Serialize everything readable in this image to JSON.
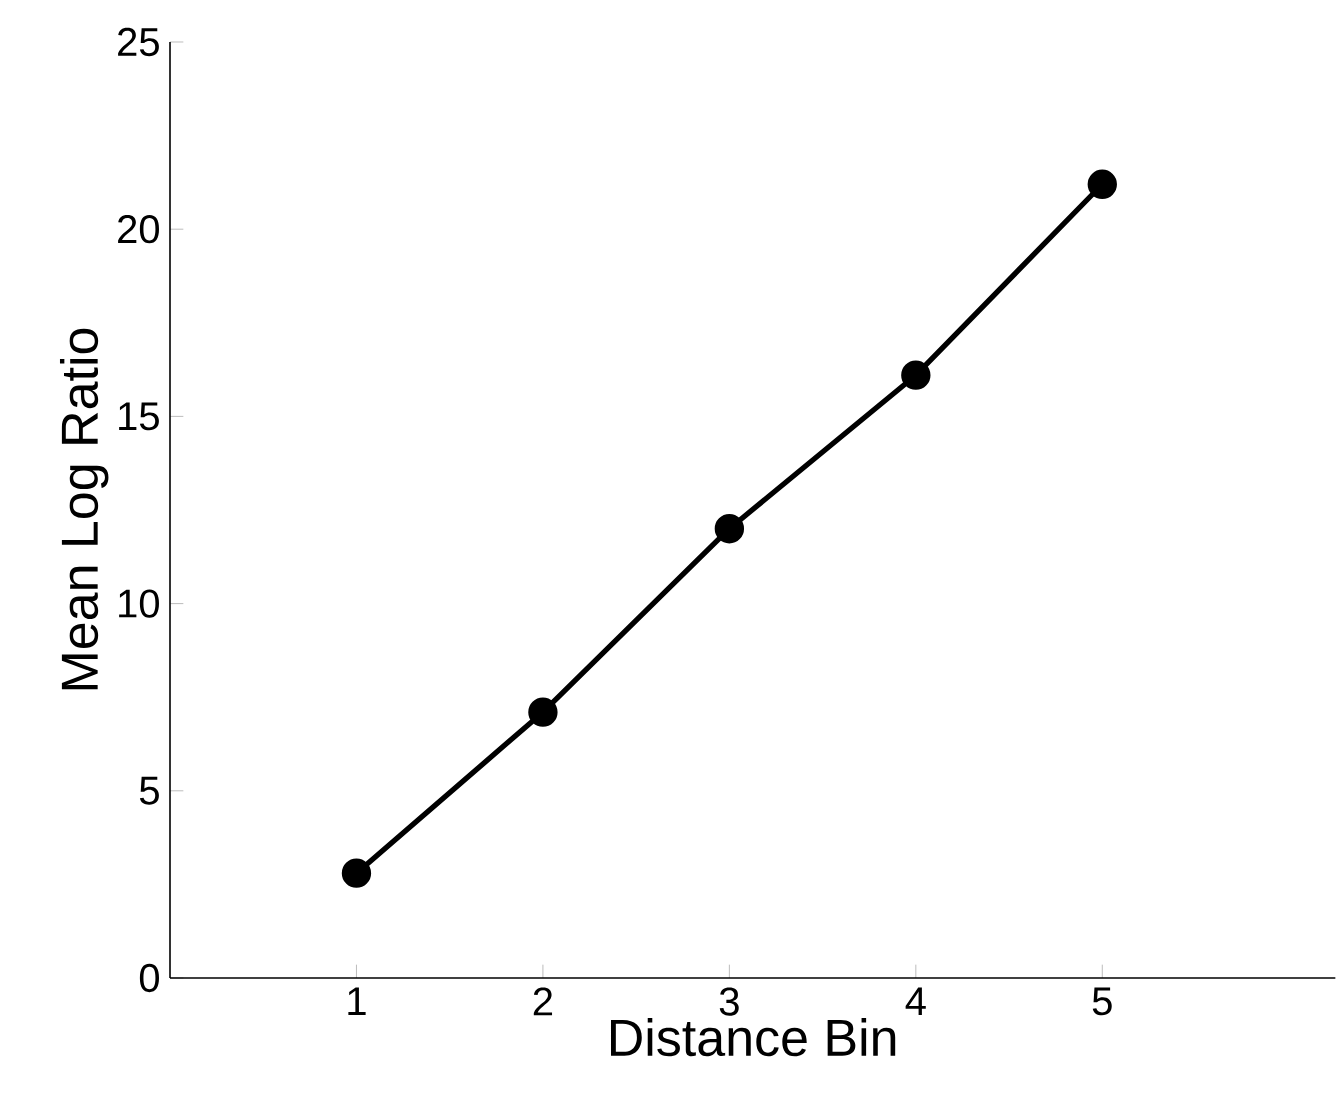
{
  "chart_data": {
    "type": "line",
    "xlabel": "Distance Bin",
    "ylabel": "Mean Log Ratio",
    "x": [
      1,
      2,
      3,
      4,
      5
    ],
    "series": [
      {
        "color": "#000000",
        "values": [
          2.8,
          7.1,
          12.0,
          16.1,
          21.2
        ]
      }
    ],
    "xlim": [
      0,
      6.25
    ],
    "xticks": [
      1,
      2,
      3,
      4,
      5
    ],
    "ylim": [
      0,
      25
    ],
    "yticks": [
      0,
      5,
      10,
      15,
      20,
      25
    ],
    "marker": "circle",
    "line_style": "solid"
  }
}
